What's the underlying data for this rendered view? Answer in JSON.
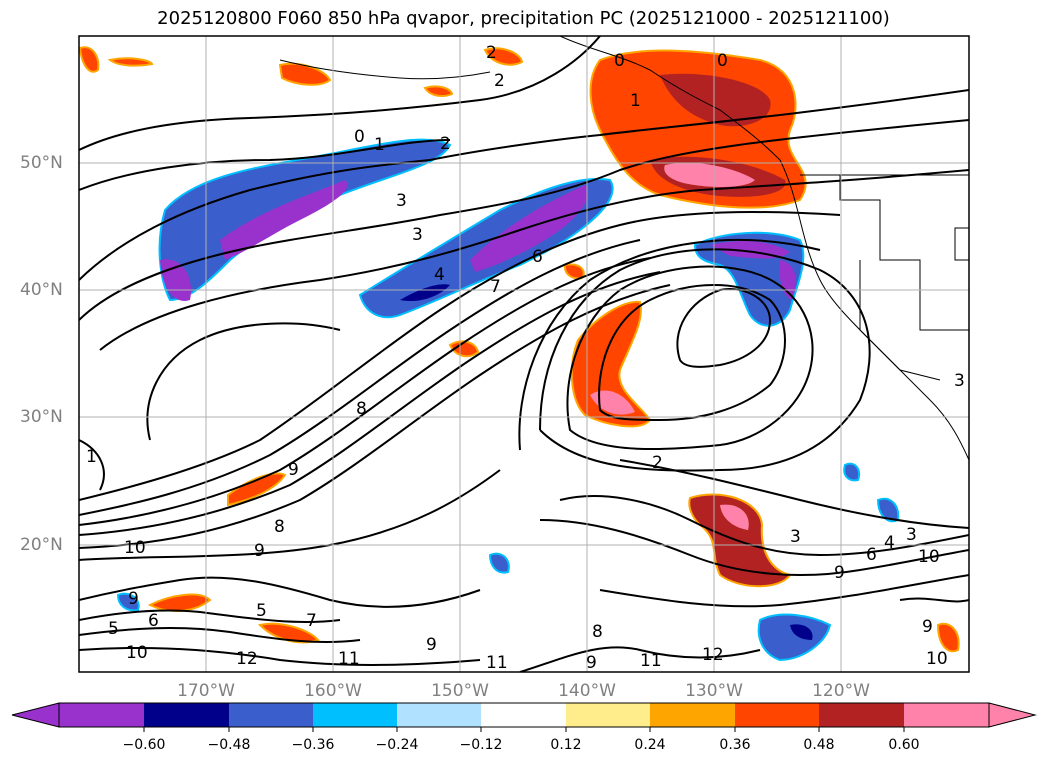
{
  "title": "2025120800 F060 850 hPa qvapor, precipitation PC (2025121000 - 2025121100)",
  "lat_labels": [
    "50°N",
    "40°N",
    "30°N",
    "20°N"
  ],
  "lon_labels": [
    "170°W",
    "160°W",
    "150°W",
    "140°W",
    "130°W",
    "120°W"
  ],
  "colorbar": {
    "tick_labels": [
      "−0.60",
      "−0.48",
      "−0.36",
      "−0.24",
      "−0.12",
      "0.12",
      "0.24",
      "0.36",
      "0.48",
      "0.60"
    ],
    "colors": [
      "#9932cc",
      "#00008b",
      "#3a5fcd",
      "#00bfff",
      "#b0e2ff",
      "#ffffff",
      "#ffec8b",
      "#ffa500",
      "#ff4500",
      "#b22222",
      "#ff82ab"
    ]
  },
  "contour_labels": [
    "2",
    "2",
    "0",
    "0",
    "1",
    "0",
    "1",
    "2",
    "3",
    "3",
    "4",
    "7",
    "6",
    "8",
    "9",
    "8",
    "9",
    "10",
    "9",
    "6",
    "5",
    "5",
    "7",
    "12",
    "11",
    "10",
    "9",
    "8",
    "9",
    "11",
    "11",
    "12",
    "2",
    "3",
    "3",
    "4",
    "6",
    "9",
    "10",
    "9",
    "10",
    "1",
    "3"
  ]
}
